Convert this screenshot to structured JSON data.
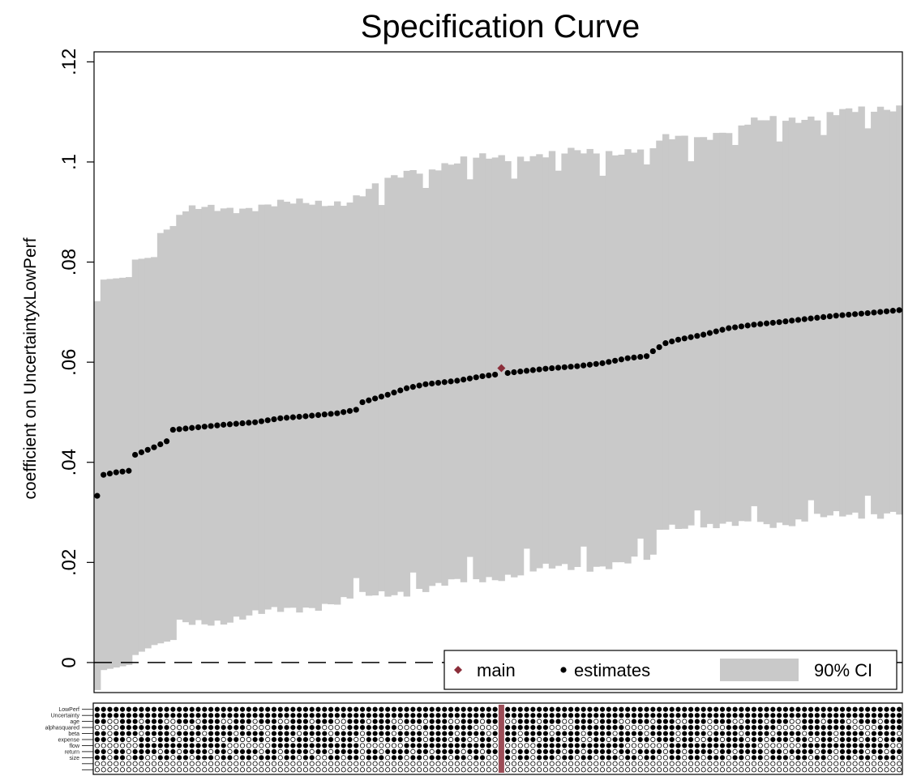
{
  "chart_data": {
    "type": "scatter",
    "title": "Specification Curve",
    "ylabel": "coefficient on UncertaintyxLowPerf",
    "xlabel": "",
    "ylim": [
      -0.006,
      0.122
    ],
    "yticks": [
      0,
      0.02,
      0.04,
      0.06,
      0.08,
      0.1,
      0.12
    ],
    "ytick_labels": [
      "0",
      ".02",
      ".04",
      ".06",
      ".08",
      ".1",
      ".12"
    ],
    "reference_line": 0,
    "n_specs": 128,
    "main_index": 64,
    "main_value": 0.0588,
    "estimate_anchors": [
      [
        0,
        0.0333
      ],
      [
        1,
        0.0375
      ],
      [
        3,
        0.038
      ],
      [
        5,
        0.0383
      ],
      [
        6,
        0.0415
      ],
      [
        9,
        0.043
      ],
      [
        11,
        0.0442
      ],
      [
        12,
        0.0465
      ],
      [
        16,
        0.047
      ],
      [
        20,
        0.0475
      ],
      [
        25,
        0.048
      ],
      [
        29,
        0.0488
      ],
      [
        33,
        0.0492
      ],
      [
        38,
        0.0498
      ],
      [
        41,
        0.0505
      ],
      [
        42,
        0.052
      ],
      [
        46,
        0.0535
      ],
      [
        49,
        0.0548
      ],
      [
        52,
        0.0556
      ],
      [
        57,
        0.0563
      ],
      [
        61,
        0.0572
      ],
      [
        66,
        0.058
      ],
      [
        71,
        0.0587
      ],
      [
        76,
        0.0592
      ],
      [
        80,
        0.0598
      ],
      [
        84,
        0.0608
      ],
      [
        87,
        0.0612
      ],
      [
        88,
        0.0622
      ],
      [
        90,
        0.0638
      ],
      [
        92,
        0.0645
      ],
      [
        96,
        0.0655
      ],
      [
        100,
        0.0668
      ],
      [
        104,
        0.0675
      ],
      [
        108,
        0.068
      ],
      [
        112,
        0.0686
      ],
      [
        117,
        0.0693
      ],
      [
        122,
        0.0698
      ],
      [
        127,
        0.0704
      ]
    ],
    "ci_upper_anchors": [
      [
        0,
        0.0722
      ],
      [
        1,
        0.0765
      ],
      [
        5,
        0.077
      ],
      [
        6,
        0.0805
      ],
      [
        9,
        0.081
      ],
      [
        10,
        0.0858
      ],
      [
        12,
        0.0872
      ],
      [
        13,
        0.0895
      ],
      [
        16,
        0.0905
      ],
      [
        30,
        0.0915
      ],
      [
        40,
        0.0923
      ],
      [
        50,
        0.0985
      ],
      [
        60,
        0.1005
      ],
      [
        70,
        0.1015
      ],
      [
        80,
        0.102
      ],
      [
        88,
        0.1028
      ],
      [
        90,
        0.1045
      ],
      [
        95,
        0.105
      ],
      [
        100,
        0.1065
      ],
      [
        105,
        0.108
      ],
      [
        112,
        0.109
      ],
      [
        120,
        0.11
      ],
      [
        127,
        0.1113
      ]
    ],
    "ci_lower_anchors": [
      [
        0,
        -0.0055
      ],
      [
        1,
        -0.0015
      ],
      [
        5,
        -0.0005
      ],
      [
        6,
        0.0015
      ],
      [
        9,
        0.0035
      ],
      [
        12,
        0.0045
      ],
      [
        13,
        0.0075
      ],
      [
        20,
        0.0085
      ],
      [
        30,
        0.0105
      ],
      [
        40,
        0.0125
      ],
      [
        50,
        0.0145
      ],
      [
        60,
        0.0165
      ],
      [
        70,
        0.0185
      ],
      [
        80,
        0.0195
      ],
      [
        88,
        0.0205
      ],
      [
        89,
        0.0265
      ],
      [
        92,
        0.0275
      ],
      [
        100,
        0.0272
      ],
      [
        110,
        0.0282
      ],
      [
        120,
        0.0295
      ],
      [
        127,
        0.0302
      ]
    ],
    "legend": {
      "position": "bottom-right",
      "entries": [
        {
          "label": "main",
          "marker": "diamond"
        },
        {
          "label": "estimates",
          "marker": "dot"
        },
        {
          "label": "90% CI",
          "marker": "band"
        }
      ]
    },
    "spec_rows": [
      "LowPerf",
      "Uncertainty",
      "age",
      "alphasquared",
      "beta",
      "expense",
      "flow",
      "return",
      "size",
      "",
      ""
    ],
    "spec_rows_shown": "filled = variable included in specification, hollow = not included",
    "colors": {
      "ci": "#c9c9c9",
      "estimate": "#000000",
      "main": "#8b2e3a",
      "axis": "#000000"
    }
  }
}
